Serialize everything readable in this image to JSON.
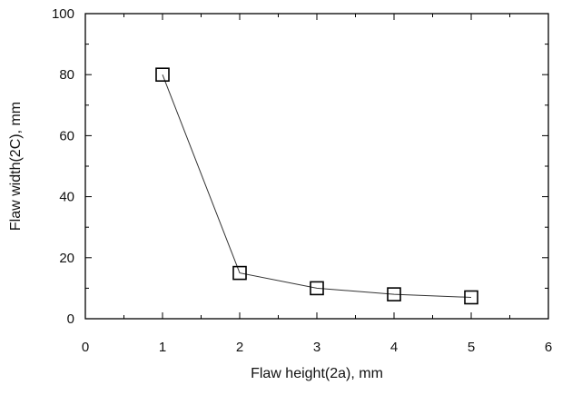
{
  "chart_data": {
    "type": "scatter",
    "xlabel": "Flaw height(2a), mm",
    "ylabel": "Flaw width(2C), mm",
    "xlim": [
      0,
      6
    ],
    "ylim": [
      0,
      100
    ],
    "x_ticks": [
      "0",
      "1",
      "2",
      "3",
      "4",
      "5",
      "6"
    ],
    "y_ticks": [
      "0",
      "20",
      "40",
      "60",
      "80",
      "100"
    ],
    "grid": false,
    "marker": "open-square",
    "connected_line": true,
    "series": [
      {
        "x": [
          1,
          2,
          3,
          4,
          5
        ],
        "y": [
          80,
          15,
          10,
          8,
          7
        ]
      }
    ]
  }
}
